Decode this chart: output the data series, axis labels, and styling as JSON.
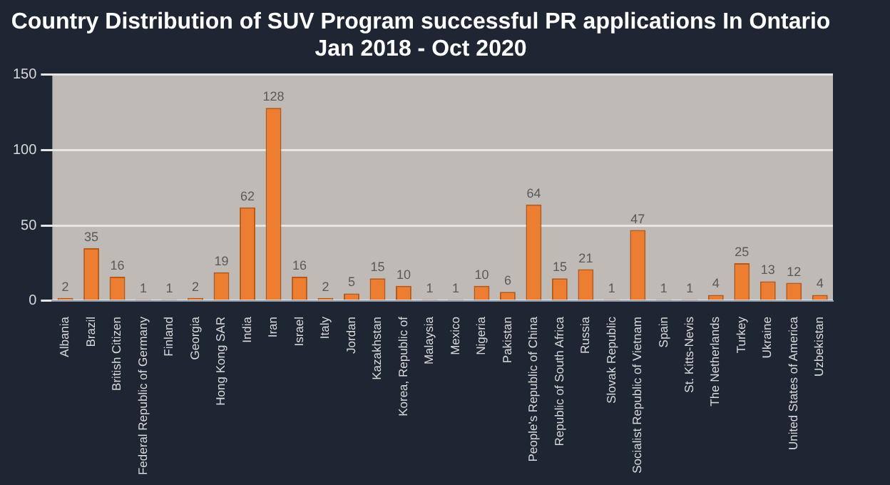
{
  "chart_data": {
    "type": "bar",
    "title": "Country Distribution of SUV Program successful PR applications In Ontario\nJan 2018 - Oct 2020",
    "categories": [
      "Albania",
      "Brazil",
      "British Citizen",
      "Federal Republic of Germany",
      "Finland",
      "Georgia",
      "Hong Kong SAR",
      "India",
      "Iran",
      "Israel",
      "Italy",
      "Jordan",
      "Kazakhstan",
      "Korea, Republic of",
      "Malaysia",
      "Mexico",
      "Nigeria",
      "Pakistan",
      "People's Republic of China",
      "Republic of South Africa",
      "Russia",
      "Slovak Republic",
      "Socialist Republic of Vietnam",
      "Spain",
      "St. Kitts-Nevis",
      "The Netherlands",
      "Turkey",
      "Ukraine",
      "United States of America",
      "Uzbekistan"
    ],
    "values": [
      2,
      35,
      16,
      1,
      1,
      2,
      19,
      62,
      128,
      16,
      2,
      5,
      15,
      10,
      1,
      1,
      10,
      6,
      64,
      15,
      21,
      1,
      47,
      1,
      1,
      4,
      25,
      13,
      12,
      4
    ],
    "color": "#ed7d31",
    "ylim": [
      0,
      150
    ],
    "yticks": [
      0,
      50,
      100,
      150
    ],
    "grid": "y",
    "data_labels": true
  }
}
